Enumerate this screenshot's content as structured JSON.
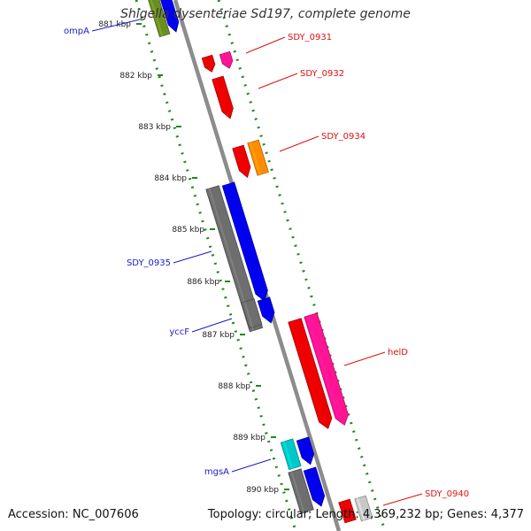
{
  "title": "Shigella dysenteriae Sd197, complete genome",
  "footer": {
    "accession": "Accession: NC_007606",
    "summary": "Topology: circular; Length: 4,369,232 bp; Genes: 4,377"
  },
  "colors": {
    "backbone": "#8c8c8c",
    "dotted_track": "#1f8a1f",
    "label_blue": "#1a1acc",
    "label_red": "#e01010"
  },
  "ticks": [
    "881 kbp",
    "882 kbp",
    "883 kbp",
    "884 kbp",
    "885 kbp",
    "886 kbp",
    "887 kbp",
    "888 kbp",
    "889 kbp",
    "890 kbp"
  ],
  "gene_labels": [
    {
      "text": "ompA",
      "color": "#1a1acc"
    },
    {
      "text": "SDY_0931",
      "color": "#e01010"
    },
    {
      "text": "SDY_0932",
      "color": "#e01010"
    },
    {
      "text": "SDY_0934",
      "color": "#e01010"
    },
    {
      "text": "SDY_0935",
      "color": "#1a1acc"
    },
    {
      "text": "yccF",
      "color": "#1a1acc"
    },
    {
      "text": "helD",
      "color": "#e01010"
    },
    {
      "text": "mgsA",
      "color": "#1a1acc"
    },
    {
      "text": "SDY_0940",
      "color": "#e01010"
    }
  ],
  "features": [
    {
      "name": "ompA-olive",
      "color": "#6b8e23"
    },
    {
      "name": "ompA-blue",
      "color": "#0000ee"
    },
    {
      "name": "sdy0931-red",
      "color": "#ee0000"
    },
    {
      "name": "sdy0931-pink",
      "color": "#ff1493"
    },
    {
      "name": "sdy0932-red",
      "color": "#ee0000"
    },
    {
      "name": "sdy0934-red",
      "color": "#ee0000"
    },
    {
      "name": "sdy0934-orange",
      "color": "#ff8c00"
    },
    {
      "name": "sdy0935-gray",
      "color": "#6e6e6e"
    },
    {
      "name": "sdy0935-blue",
      "color": "#0000ee"
    },
    {
      "name": "yccf-gray",
      "color": "#6e6e6e"
    },
    {
      "name": "yccf-blue",
      "color": "#0000ee"
    },
    {
      "name": "held-red",
      "color": "#ee0000"
    },
    {
      "name": "held-pink",
      "color": "#ff1493"
    },
    {
      "name": "mgsa-cyan",
      "color": "#00c8c8"
    },
    {
      "name": "mgsa-blue",
      "color": "#0000ee"
    },
    {
      "name": "gene890-gray",
      "color": "#6e6e6e"
    },
    {
      "name": "gene890-blue",
      "color": "#0000ee"
    },
    {
      "name": "sdy0940-red",
      "color": "#ee0000"
    },
    {
      "name": "sdy0940-gray",
      "color": "#c8c8c8"
    }
  ]
}
